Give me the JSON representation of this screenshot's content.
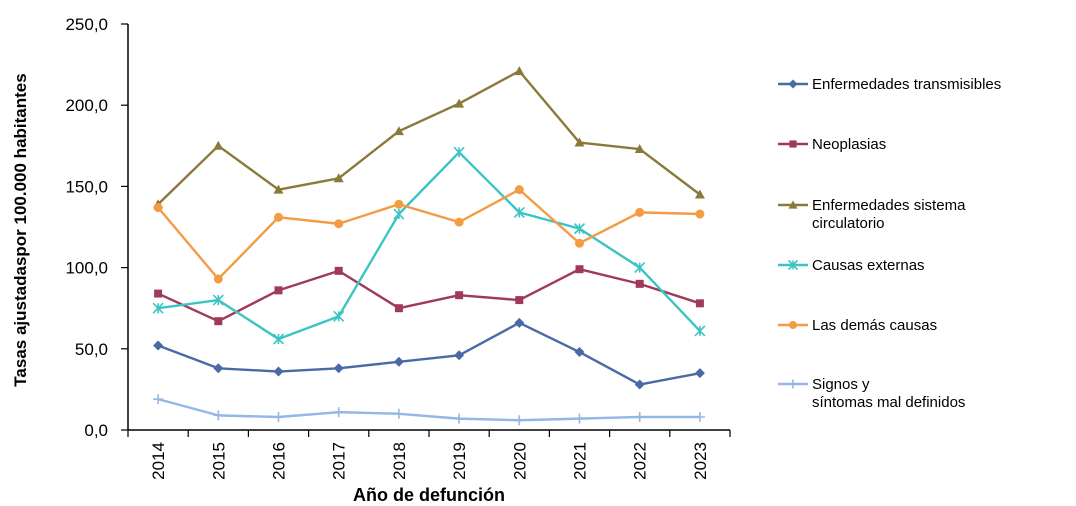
{
  "chart_data": {
    "type": "line",
    "title": "",
    "xlabel": "Año de defunción",
    "ylabel": "Tasas ajustadaspor 100.000 habitantes",
    "ylim": [
      0,
      250
    ],
    "yticks": [
      "0,0",
      "50,0",
      "100,0",
      "150,0",
      "200,0",
      "250,0"
    ],
    "categories": [
      "2014",
      "2015",
      "2016",
      "2017",
      "2018",
      "2019",
      "2020",
      "2021",
      "2022",
      "2023"
    ],
    "grid": false,
    "legend": "right",
    "series": [
      {
        "name": "Enfermedades transmisibles",
        "color": "#4a6aa5",
        "marker": "diamond",
        "values": [
          52,
          38,
          36,
          38,
          42,
          46,
          66,
          48,
          28,
          35
        ]
      },
      {
        "name": "Neoplasias",
        "color": "#a0395a",
        "marker": "square",
        "values": [
          84,
          67,
          86,
          98,
          75,
          83,
          80,
          99,
          90,
          78
        ]
      },
      {
        "name": "Enfermedades sistema circulatorio",
        "color": "#8a7a3a",
        "marker": "triangle",
        "values": [
          139,
          175,
          148,
          155,
          184,
          201,
          221,
          177,
          173,
          145
        ]
      },
      {
        "name": "Causas externas",
        "color": "#3bc4c4",
        "marker": "star",
        "values": [
          75,
          80,
          56,
          70,
          133,
          171,
          134,
          124,
          100,
          61
        ]
      },
      {
        "name": "Las demás causas",
        "color": "#f39c44",
        "marker": "circle",
        "values": [
          137,
          93,
          131,
          127,
          139,
          128,
          148,
          115,
          134,
          133
        ]
      },
      {
        "name": "Signos y síntomas mal definidos",
        "color": "#93b7e6",
        "marker": "plus",
        "values": [
          19,
          9,
          8,
          11,
          10,
          7,
          6,
          7,
          8,
          8
        ]
      }
    ]
  }
}
